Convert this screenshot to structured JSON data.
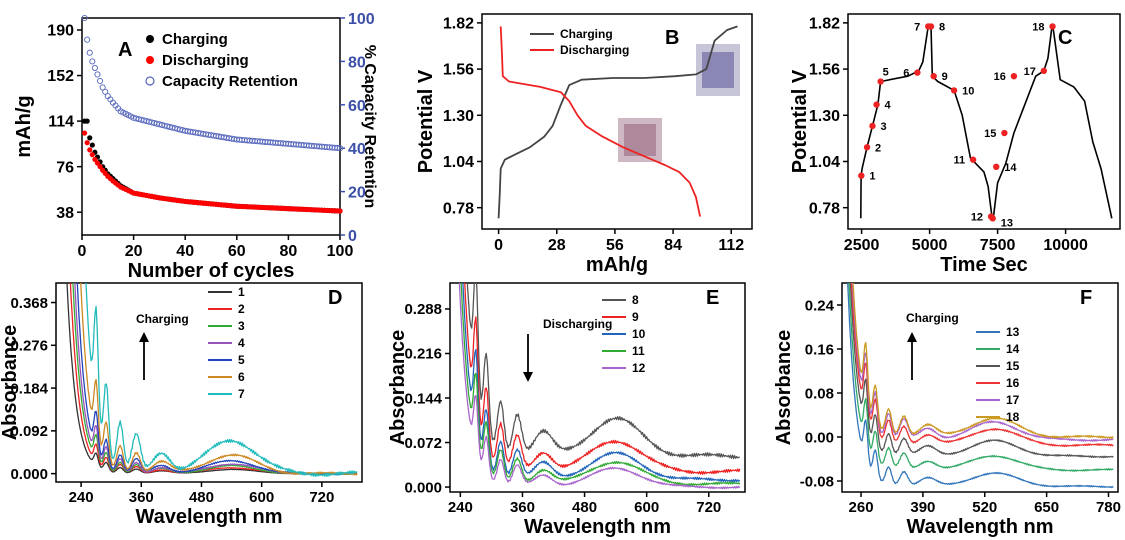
{
  "chart_data": [
    {
      "panel": "A",
      "type": "scatter",
      "xlabel": "Number of cycles",
      "ylabel": "mAh/g",
      "y2label": "% Capacity Retention",
      "xlim": [
        0,
        100
      ],
      "ylim": [
        19,
        200
      ],
      "y2lim": [
        0,
        100
      ],
      "xticks": [
        0,
        20,
        40,
        60,
        80,
        100
      ],
      "yticks": [
        38,
        76,
        114,
        152,
        190
      ],
      "y2ticks": [
        0,
        20,
        40,
        60,
        80,
        100
      ],
      "legend_position": "top-right",
      "series": [
        {
          "name": "Charging",
          "axis": "left",
          "color": "#000000",
          "marker": "filled-circle",
          "x": [
            1,
            2,
            3,
            4,
            5,
            6,
            7,
            8,
            10,
            12,
            15,
            20,
            30,
            40,
            50,
            60,
            70,
            80,
            90,
            100
          ],
          "values": [
            114,
            114,
            100,
            94,
            88,
            84,
            80,
            76,
            70,
            66,
            60,
            54,
            50,
            47,
            45,
            43,
            42,
            41,
            40,
            39
          ]
        },
        {
          "name": "Discharging",
          "axis": "left",
          "color": "#ff0000",
          "marker": "filled-circle",
          "x": [
            1,
            2,
            3,
            4,
            5,
            6,
            7,
            8,
            10,
            12,
            15,
            20,
            30,
            40,
            50,
            60,
            70,
            80,
            90,
            100
          ],
          "values": [
            104,
            96,
            90,
            86,
            82,
            79,
            76,
            73,
            68,
            64,
            59,
            54,
            50,
            47,
            45,
            43,
            42,
            41,
            40,
            39
          ]
        },
        {
          "name": "Capacity Retention",
          "axis": "right",
          "color": "#5566bb",
          "marker": "open-circle",
          "x": [
            1,
            2,
            3,
            4,
            5,
            6,
            7,
            8,
            10,
            12,
            15,
            20,
            30,
            40,
            50,
            60,
            70,
            80,
            90,
            100
          ],
          "values": [
            100,
            90,
            84,
            80,
            77,
            74,
            71,
            68,
            64,
            61,
            57,
            54,
            51,
            48,
            46,
            44,
            43,
            42,
            41,
            40
          ]
        }
      ]
    },
    {
      "panel": "B",
      "type": "line",
      "xlabel": "mAh/g",
      "ylabel": "Potential V",
      "xlim": [
        -8,
        122
      ],
      "ylim": [
        0.66,
        1.87
      ],
      "xticks": [
        0,
        28,
        56,
        84,
        112
      ],
      "yticks": [
        0.78,
        1.04,
        1.3,
        1.56,
        1.82
      ],
      "legend_position": "top-center",
      "series": [
        {
          "name": "Charging",
          "color": "#444444",
          "x": [
            0,
            0.5,
            1,
            3,
            8,
            15,
            22,
            26,
            30,
            34,
            40,
            55,
            70,
            85,
            95,
            100,
            104,
            110,
            115
          ],
          "values": [
            0.72,
            0.85,
            1.0,
            1.05,
            1.08,
            1.12,
            1.18,
            1.24,
            1.36,
            1.47,
            1.5,
            1.51,
            1.51,
            1.52,
            1.53,
            1.56,
            1.72,
            1.78,
            1.8
          ]
        },
        {
          "name": "Discharging",
          "color": "#ee2222",
          "x": [
            1,
            1.5,
            2,
            5,
            20,
            30,
            34,
            38,
            42,
            50,
            60,
            72,
            80,
            87,
            92,
            95,
            97
          ],
          "values": [
            1.8,
            1.68,
            1.52,
            1.49,
            1.46,
            1.43,
            1.38,
            1.3,
            1.24,
            1.18,
            1.12,
            1.06,
            1.02,
            0.98,
            0.92,
            0.84,
            0.73
          ]
        }
      ]
    },
    {
      "panel": "C",
      "type": "line",
      "xlabel": "Time Sec",
      "ylabel": "Potential V",
      "xlim": [
        2000,
        12000
      ],
      "ylim": [
        0.66,
        1.87
      ],
      "xticks": [
        2500,
        5000,
        7500,
        10000
      ],
      "yticks": [
        0.78,
        1.04,
        1.3,
        1.56,
        1.82
      ],
      "series": [
        {
          "name": "",
          "color": "#000000",
          "x": [
            2470,
            2480,
            2520,
            2700,
            2900,
            3100,
            3200,
            4200,
            4600,
            4750,
            4950,
            5050,
            5100,
            5300,
            5900,
            6200,
            6500,
            7000,
            7150,
            7250,
            7300,
            7350,
            7500,
            7800,
            8100,
            8900,
            9200,
            9350,
            9500,
            9550,
            9800,
            10300,
            10700,
            11000,
            11300,
            11700
          ],
          "values": [
            0.72,
            0.96,
            1.0,
            1.12,
            1.24,
            1.36,
            1.49,
            1.52,
            1.55,
            1.6,
            1.8,
            1.8,
            1.52,
            1.49,
            1.44,
            1.3,
            1.06,
            0.98,
            0.9,
            0.78,
            0.72,
            0.73,
            0.92,
            1.03,
            1.2,
            1.52,
            1.55,
            1.62,
            1.8,
            1.78,
            1.5,
            1.46,
            1.38,
            1.15,
            1.0,
            0.72
          ]
        }
      ],
      "points": {
        "labels": [
          "1",
          "2",
          "3",
          "4",
          "5",
          "6",
          "7",
          "8",
          "9",
          "10",
          "11",
          "12",
          "13",
          "14",
          "15",
          "16",
          "17",
          "18"
        ],
        "x": [
          2490,
          2700,
          2900,
          3050,
          3200,
          4550,
          4950,
          5050,
          5150,
          5900,
          6600,
          7260,
          7320,
          7450,
          7750,
          8100,
          9200,
          9520
        ],
        "values": [
          0.96,
          1.12,
          1.24,
          1.36,
          1.49,
          1.54,
          1.8,
          1.8,
          1.52,
          1.44,
          1.05,
          0.73,
          0.72,
          1.01,
          1.2,
          1.52,
          1.55,
          1.8
        ]
      }
    },
    {
      "panel": "D",
      "type": "line",
      "xlabel": "Wavelength nm",
      "ylabel": "Absorbance",
      "annotation": "Charging",
      "xlim": [
        190,
        800
      ],
      "ylim": [
        -0.018,
        0.41
      ],
      "xticks": [
        240,
        360,
        480,
        600,
        720
      ],
      "yticks": [
        0.0,
        0.092,
        0.184,
        0.276,
        0.368
      ],
      "legend_position": "top-right",
      "series": [
        {
          "name": "1",
          "color": "#333333",
          "amp": 0.022
        },
        {
          "name": "2",
          "color": "#ee2222",
          "amp": 0.032
        },
        {
          "name": "3",
          "color": "#33aa33",
          "amp": 0.042
        },
        {
          "name": "4",
          "color": "#9955bb",
          "amp": 0.052
        },
        {
          "name": "5",
          "color": "#2244bb",
          "amp": 0.068
        },
        {
          "name": "6",
          "color": "#cc8822",
          "amp": 0.1
        },
        {
          "name": "7",
          "color": "#22bbbb",
          "amp": 0.18
        }
      ]
    },
    {
      "panel": "E",
      "type": "line",
      "xlabel": "Wavelength nm",
      "ylabel": "Absorbance",
      "annotation": "Discharging",
      "xlim": [
        220,
        790
      ],
      "ylim": [
        -0.008,
        0.33
      ],
      "xticks": [
        240,
        360,
        480,
        600,
        720
      ],
      "yticks": [
        0.0,
        0.072,
        0.144,
        0.216,
        0.288
      ],
      "legend_position": "top-right",
      "series": [
        {
          "name": "8",
          "color": "#555555",
          "amp": 0.15,
          "base": 0.05
        },
        {
          "name": "9",
          "color": "#ee2222",
          "amp": 0.125,
          "base": 0.025
        },
        {
          "name": "10",
          "color": "#2266bb",
          "amp": 0.105,
          "base": 0.012
        },
        {
          "name": "11",
          "color": "#33aa33",
          "amp": 0.09,
          "base": 0.005
        },
        {
          "name": "12",
          "color": "#aa66cc",
          "amp": 0.075,
          "base": 0.0
        }
      ]
    },
    {
      "panel": "F",
      "type": "line",
      "xlabel": "Wavelength nm",
      "ylabel": "Absorbance",
      "annotation": "Charging",
      "xlim": [
        220,
        800
      ],
      "ylim": [
        -0.1,
        0.28
      ],
      "xticks": [
        260,
        390,
        520,
        650,
        780
      ],
      "yticks": [
        -0.08,
        0.0,
        0.08,
        0.16,
        0.24
      ],
      "legend_position": "top-right",
      "series": [
        {
          "name": "13",
          "color": "#3377bb",
          "amp": 0.06,
          "base": -0.09
        },
        {
          "name": "14",
          "color": "#33aa66",
          "amp": 0.065,
          "base": -0.06
        },
        {
          "name": "15",
          "color": "#555555",
          "amp": 0.07,
          "base": -0.035
        },
        {
          "name": "16",
          "color": "#ee3333",
          "amp": 0.075,
          "base": -0.015
        },
        {
          "name": "17",
          "color": "#aa66cc",
          "amp": 0.08,
          "base": -0.005
        },
        {
          "name": "18",
          "color": "#cc9922",
          "amp": 0.085,
          "base": 0.0
        }
      ]
    }
  ]
}
